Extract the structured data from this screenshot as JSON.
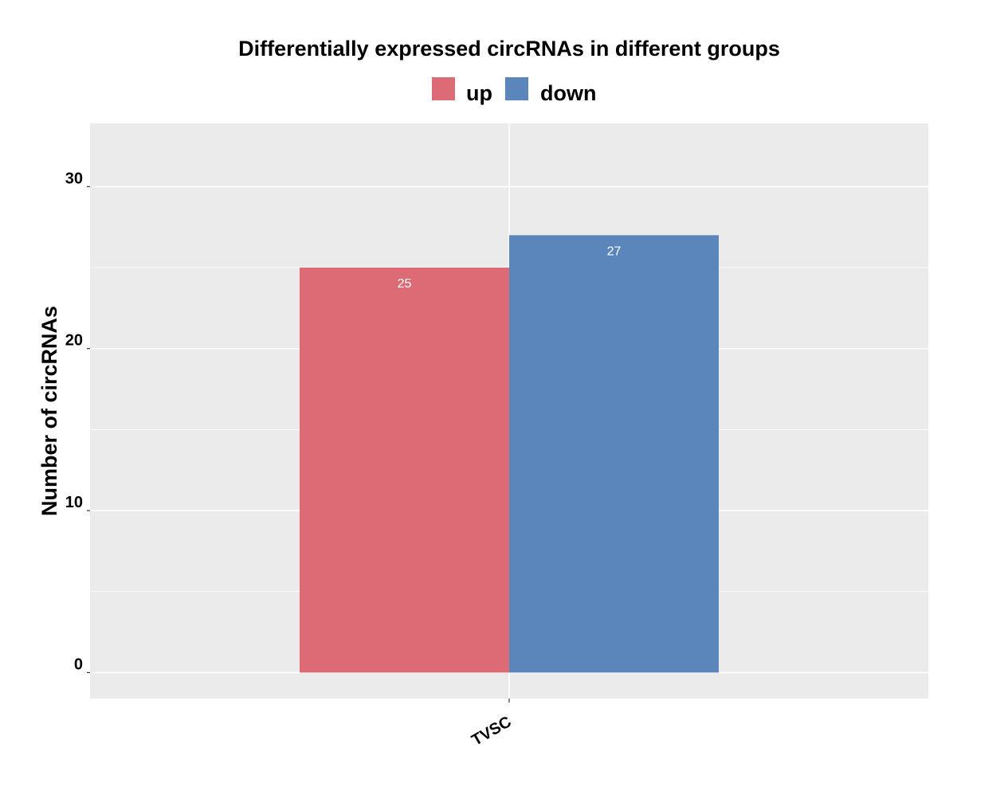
{
  "chart_data": {
    "type": "bar",
    "title": "Differentially expressed circRNAs in different groups",
    "xlabel": "",
    "ylabel": "Number of circRNAs",
    "categories": [
      "TVSC"
    ],
    "series": [
      {
        "name": "up",
        "values": [
          25
        ],
        "color": "#dc6b75"
      },
      {
        "name": "down",
        "values": [
          27
        ],
        "color": "#5b86bb"
      }
    ],
    "data_labels": [
      "25",
      "27"
    ],
    "yticks": [
      0,
      10,
      20,
      30
    ],
    "ylim": [
      -1.6,
      33.9
    ],
    "grid": true,
    "legend_position": "top-center",
    "panel_background": "#ebebeb",
    "grid_color": "#ffffff"
  }
}
